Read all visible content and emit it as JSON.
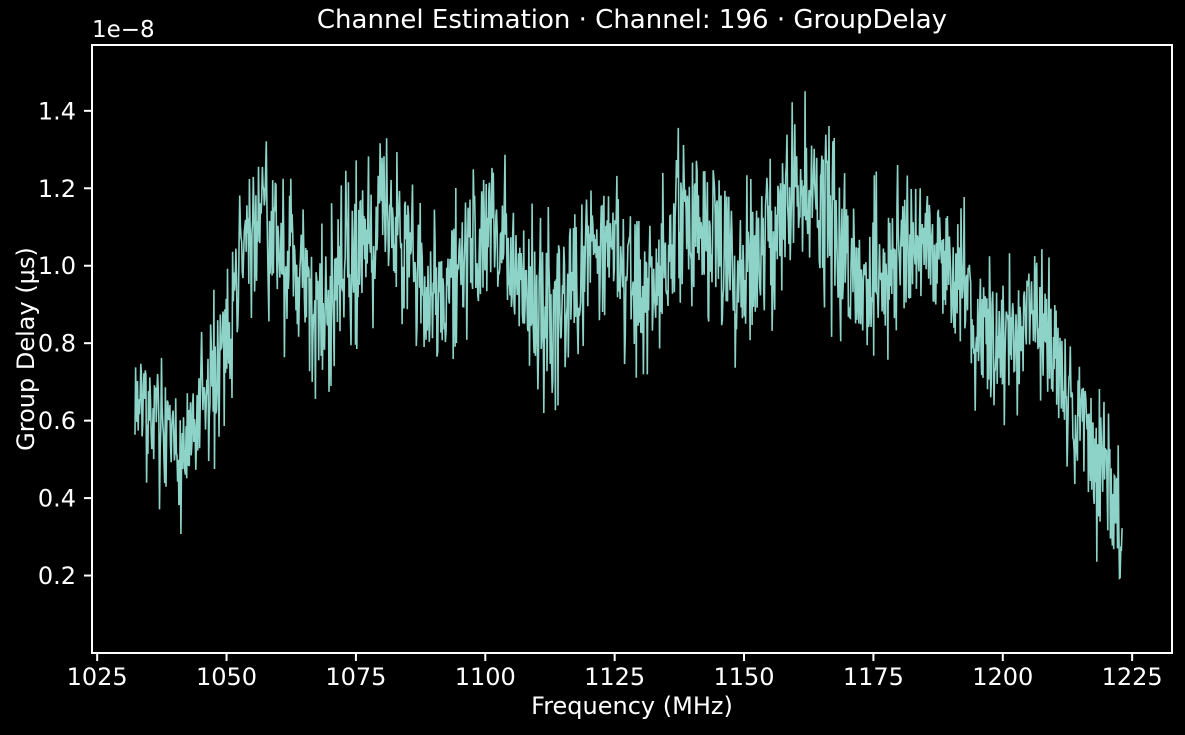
{
  "figure": {
    "background_color": "#000000",
    "text_color": "#ffffff"
  },
  "chart": {
    "title": "Channel Estimation · Channel: 196 · GroupDelay",
    "xlabel": "Frequency (MHz)",
    "ylabel": "Group Delay (µs)",
    "y_offset_label": "1e−8"
  },
  "chart_data": {
    "type": "line",
    "title": "Channel Estimation · Channel: 196 · GroupDelay",
    "xlabel": "Frequency (MHz)",
    "ylabel": "Group Delay (µs)",
    "y_offset_text": "1e−8",
    "y_scale_factor": 1e-08,
    "line_color": "#8dd3c7",
    "axis_color": "#ffffff",
    "background_color": "#000000",
    "grid": false,
    "legend": null,
    "xlim": [
      1024.0,
      1232.7
    ],
    "ylim": [
      0.0,
      1.57
    ],
    "xticks": [
      1025,
      1050,
      1075,
      1100,
      1125,
      1150,
      1175,
      1200,
      1225
    ],
    "yticks": [
      0.2,
      0.4,
      0.6,
      0.8,
      1.0,
      1.2,
      1.4
    ],
    "x_start_mhz": 1032.3,
    "x_end_mhz": 1223.1,
    "series_name": "GroupDelay channel 196",
    "envelope_columns": [
      "freq_mhz",
      "mid_value_1e-8",
      "half_band_1e-8"
    ],
    "envelope_points": [
      [
        1032.3,
        0.66,
        0.2
      ],
      [
        1036.0,
        0.6,
        0.2
      ],
      [
        1040.0,
        0.5,
        0.22
      ],
      [
        1043.0,
        0.52,
        0.24
      ],
      [
        1047.0,
        0.68,
        0.24
      ],
      [
        1051.0,
        0.9,
        0.26
      ],
      [
        1055.0,
        1.12,
        0.28
      ],
      [
        1058.0,
        1.12,
        0.28
      ],
      [
        1061.0,
        1.02,
        0.26
      ],
      [
        1065.0,
        0.92,
        0.26
      ],
      [
        1068.0,
        0.86,
        0.28
      ],
      [
        1072.0,
        0.96,
        0.26
      ],
      [
        1076.0,
        1.06,
        0.26
      ],
      [
        1080.0,
        1.12,
        0.27
      ],
      [
        1084.0,
        1.04,
        0.26
      ],
      [
        1088.0,
        0.94,
        0.27
      ],
      [
        1091.0,
        0.9,
        0.28
      ],
      [
        1095.0,
        1.0,
        0.26
      ],
      [
        1099.0,
        1.08,
        0.27
      ],
      [
        1102.0,
        1.1,
        0.27
      ],
      [
        1106.0,
        1.0,
        0.27
      ],
      [
        1110.0,
        0.88,
        0.3
      ],
      [
        1113.0,
        0.86,
        0.32
      ],
      [
        1117.0,
        0.98,
        0.27
      ],
      [
        1121.0,
        1.06,
        0.27
      ],
      [
        1125.0,
        1.04,
        0.26
      ],
      [
        1129.0,
        0.97,
        0.27
      ],
      [
        1132.0,
        0.96,
        0.27
      ],
      [
        1136.0,
        1.06,
        0.27
      ],
      [
        1140.0,
        1.14,
        0.28
      ],
      [
        1144.0,
        1.1,
        0.27
      ],
      [
        1148.0,
        1.0,
        0.29
      ],
      [
        1151.0,
        0.97,
        0.29
      ],
      [
        1155.0,
        1.06,
        0.28
      ],
      [
        1159.0,
        1.16,
        0.29
      ],
      [
        1162.0,
        1.18,
        0.3
      ],
      [
        1166.0,
        1.12,
        0.28
      ],
      [
        1170.0,
        1.02,
        0.29
      ],
      [
        1174.0,
        0.96,
        0.3
      ],
      [
        1178.0,
        1.0,
        0.28
      ],
      [
        1182.0,
        1.05,
        0.27
      ],
      [
        1186.0,
        1.06,
        0.27
      ],
      [
        1190.0,
        1.0,
        0.28
      ],
      [
        1194.0,
        0.88,
        0.28
      ],
      [
        1198.0,
        0.8,
        0.27
      ],
      [
        1202.0,
        0.82,
        0.24
      ],
      [
        1206.0,
        0.88,
        0.22
      ],
      [
        1210.0,
        0.78,
        0.24
      ],
      [
        1214.0,
        0.64,
        0.25
      ],
      [
        1218.0,
        0.5,
        0.26
      ],
      [
        1221.0,
        0.4,
        0.26
      ],
      [
        1223.1,
        0.3,
        0.24
      ]
    ],
    "noise_model": {
      "seed": 7,
      "step_mhz": 0.125,
      "core_fraction": 0.75,
      "core_scale": 0.55
    }
  }
}
